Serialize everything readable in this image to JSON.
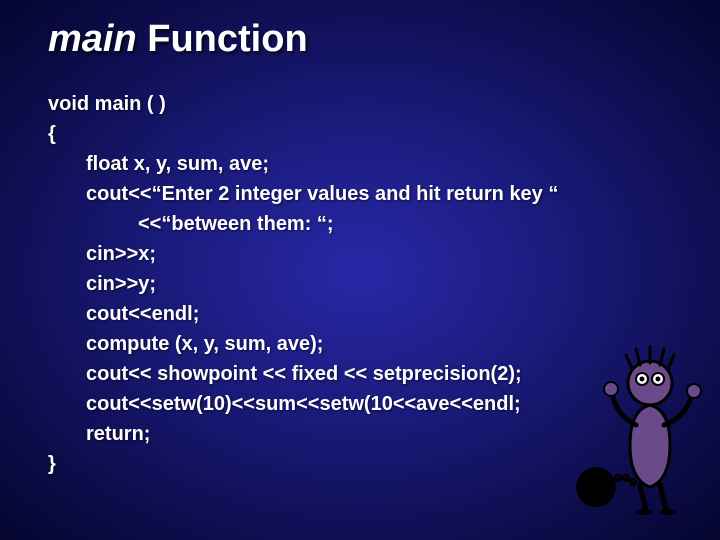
{
  "title": {
    "italic_part": "main",
    "rest": " Function"
  },
  "code_lines": [
    {
      "indent": 0,
      "text": "void main ( )"
    },
    {
      "indent": 0,
      "text": "{"
    },
    {
      "indent": 1,
      "text": "float x, y, sum, ave;"
    },
    {
      "indent": 1,
      "text": "cout<<“Enter 2 integer values and hit return key “"
    },
    {
      "indent": 2,
      "text": "<<“between them: “;"
    },
    {
      "indent": 1,
      "text": "cin>>x;"
    },
    {
      "indent": 1,
      "text": "cin>>y;"
    },
    {
      "indent": 1,
      "text": "cout<<endl;"
    },
    {
      "indent": 1,
      "text": "compute (x, y, sum, ave);"
    },
    {
      "indent": 1,
      "text": "cout<< showpoint << fixed << setprecision(2);"
    },
    {
      "indent": 1,
      "text": "cout<<setw(10)<<sum<<setw(10<<ave<<endl;"
    },
    {
      "indent": 1,
      "text": "return;"
    },
    {
      "indent": 0,
      "text": "}"
    }
  ],
  "figure": {
    "body_color": "#6a4a8a",
    "outline_color": "#000000",
    "ball_color": "#000000",
    "chain_color": "#000000"
  },
  "style": {
    "title_fontsize": 38,
    "code_fontsize": 20,
    "text_color": "#ffffff",
    "bg_gradient_center": "#2828a8",
    "bg_gradient_edge": "#050530"
  }
}
